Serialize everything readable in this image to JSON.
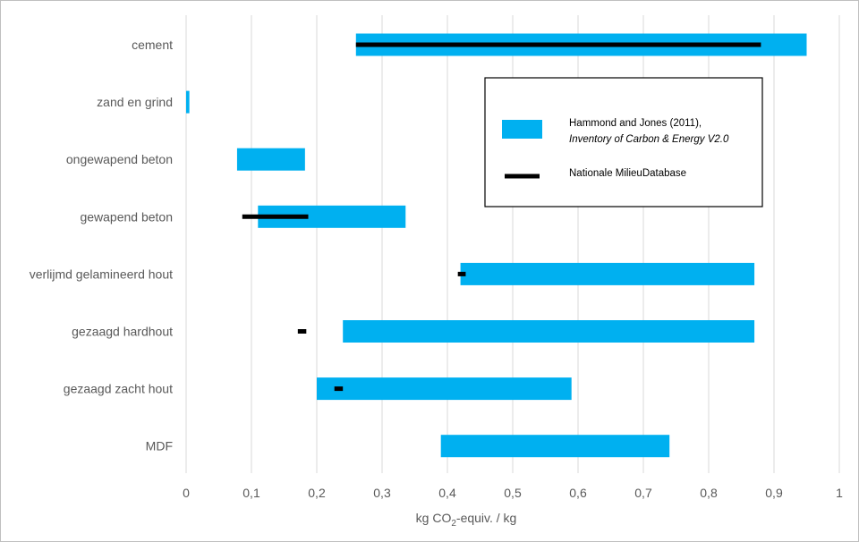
{
  "chart_data": {
    "type": "bar",
    "orientation": "horizontal-range",
    "categories": [
      "cement",
      "zand en grind",
      "ongewapend beton",
      "gewapend beton",
      "verlijmd gelamineerd hout",
      "gezaagd hardhout",
      "gezaagd zacht hout",
      "MDF"
    ],
    "series": [
      {
        "name": "Hammond and Jones (2011), Inventory of Carbon & Energy V2.0",
        "style": "range-bar",
        "color": "#00b0f0",
        "ranges": [
          [
            0.26,
            0.95
          ],
          [
            0.0,
            0.005
          ],
          [
            0.078,
            0.182
          ],
          [
            0.11,
            0.336
          ],
          [
            0.42,
            0.87
          ],
          [
            0.24,
            0.87
          ],
          [
            0.2,
            0.59
          ],
          [
            0.39,
            0.74
          ]
        ]
      },
      {
        "name": "Nationale MilieuDatabase",
        "style": "range-line",
        "color": "#000000",
        "ranges": [
          [
            0.26,
            0.88
          ],
          null,
          null,
          [
            0.086,
            0.187
          ],
          [
            0.416,
            0.428
          ],
          [
            0.171,
            0.184
          ],
          [
            0.227,
            0.24
          ],
          null
        ]
      }
    ],
    "xlim": [
      0,
      1
    ],
    "xticks": [
      "0",
      "0,1",
      "0,2",
      "0,3",
      "0,4",
      "0,5",
      "0,6",
      "0,7",
      "0,8",
      "0,9",
      "1"
    ],
    "xticks_values": [
      0,
      0.1,
      0.2,
      0.3,
      0.4,
      0.5,
      0.6,
      0.7,
      0.8,
      0.9,
      1
    ],
    "xlabel": {
      "prefix": "kg CO",
      "sub": "2",
      "suffix": "-equiv. / kg"
    },
    "title": "",
    "grid": "vertical",
    "gridline_color": "#d9d9d9",
    "legend": {
      "placement": "top-right inside plot",
      "entries": [
        {
          "line1": "Hammond and Jones (2011),",
          "line2": "Inventory of Carbon & Energy V2.0"
        },
        {
          "line1": "Nationale MilieuDatabase"
        }
      ]
    }
  }
}
